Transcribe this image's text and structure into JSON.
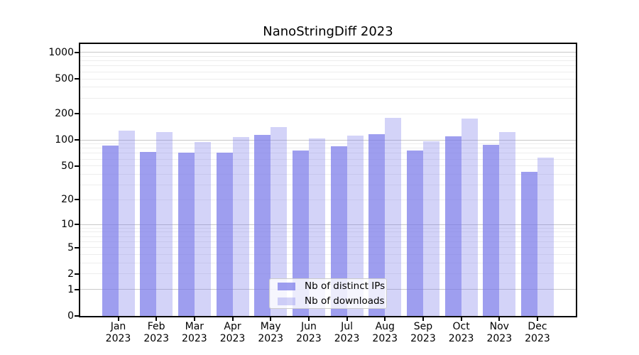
{
  "chart_data": {
    "type": "bar",
    "title": "NanoStringDiff 2023",
    "categories": [
      "Jan 2023",
      "Feb 2023",
      "Mar 2023",
      "Apr 2023",
      "May 2023",
      "Jun 2023",
      "Jul 2023",
      "Aug 2023",
      "Sep 2023",
      "Oct 2023",
      "Nov 2023",
      "Dec 2023"
    ],
    "x_months": [
      "Jan",
      "Feb",
      "Mar",
      "Apr",
      "May",
      "Jun",
      "Jul",
      "Aug",
      "Sep",
      "Oct",
      "Nov",
      "Dec"
    ],
    "x_year": "2023",
    "series": [
      {
        "name": "Nb of distinct IPs",
        "values": [
          86,
          73,
          72,
          72,
          114,
          76,
          85,
          116,
          76,
          110,
          88,
          43
        ],
        "color": "rgba(120,120,233,0.72)"
      },
      {
        "name": "Nb of downloads",
        "values": [
          129,
          122,
          95,
          108,
          141,
          104,
          112,
          179,
          96,
          176,
          123,
          62
        ],
        "color": "rgba(120,120,233,0.33)"
      }
    ],
    "y_axis": {
      "scale": "log1p",
      "ticks": [
        0,
        1,
        2,
        5,
        10,
        20,
        50,
        100,
        200,
        500,
        1000
      ],
      "ylim": [
        0,
        1000
      ],
      "ylabel": "",
      "xlabel": ""
    },
    "grid": {
      "on": true,
      "major_color": "#c8c8c8",
      "minor_color": "#ededed",
      "minor_values": [
        2,
        3,
        4,
        5,
        6,
        7,
        8,
        9,
        20,
        30,
        40,
        50,
        60,
        70,
        80,
        90,
        200,
        300,
        400,
        500,
        600,
        700,
        800,
        900
      ],
      "major_values": [
        1,
        10,
        100,
        1000
      ]
    },
    "legend": {
      "position": "inside-bottom-center",
      "entries": [
        "Nb of distinct IPs",
        "Nb of downloads"
      ]
    },
    "colors": {
      "spine": "#000000",
      "background": "#ffffff",
      "bar_base": "#7878e9"
    }
  }
}
